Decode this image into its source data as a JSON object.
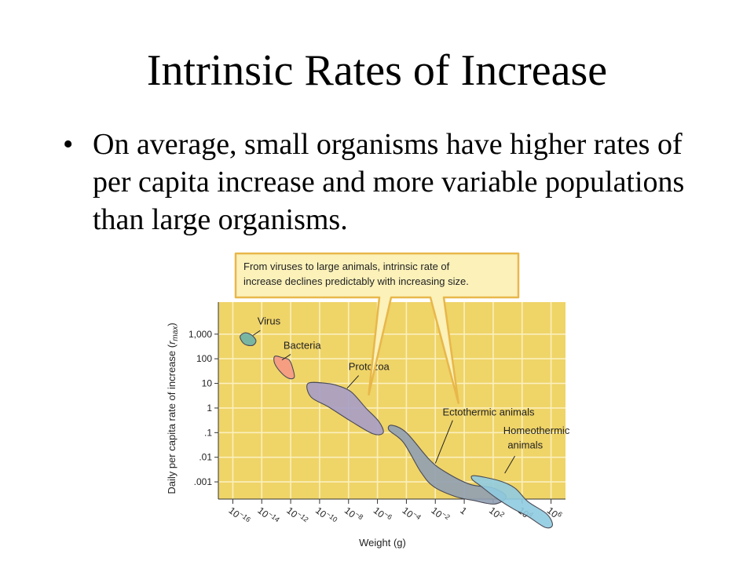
{
  "slide": {
    "title": "Intrinsic Rates of Increase",
    "bullet": "On average, small organisms have higher rates of per capita increase and more variable populations than large organisms."
  },
  "chart_data": {
    "type": "scatter",
    "subtype": "region-plot",
    "title": "",
    "xlabel": "Weight (g)",
    "ylabel_prefix": "Daily per capita rate of increase (",
    "ylabel_symbol": "r",
    "ylabel_subscript": "max",
    "ylabel_suffix": ")",
    "x_scale": "log",
    "y_scale": "log",
    "xlim": [
      1e-17,
      10000000.0
    ],
    "ylim": [
      0.0002,
      20000
    ],
    "x_ticks": [
      {
        "value": 1e-16,
        "base": "10",
        "exp": "−16"
      },
      {
        "value": 1e-14,
        "base": "10",
        "exp": "−14"
      },
      {
        "value": 1e-12,
        "base": "10",
        "exp": "−12"
      },
      {
        "value": 1e-10,
        "base": "10",
        "exp": "−10"
      },
      {
        "value": 1e-08,
        "base": "10",
        "exp": "−8"
      },
      {
        "value": 1e-06,
        "base": "10",
        "exp": "−6"
      },
      {
        "value": 0.0001,
        "base": "10",
        "exp": "−4"
      },
      {
        "value": 0.01,
        "base": "10",
        "exp": "−2"
      },
      {
        "value": 1,
        "base": "1",
        "exp": ""
      },
      {
        "value": 100.0,
        "base": "10",
        "exp": "2"
      },
      {
        "value": 10000.0,
        "base": "10",
        "exp": "4"
      },
      {
        "value": 1000000.0,
        "base": "10",
        "exp": "6"
      }
    ],
    "y_ticks": [
      {
        "value": 1000,
        "label": "1,000"
      },
      {
        "value": 100,
        "label": "100"
      },
      {
        "value": 10,
        "label": "10"
      },
      {
        "value": 1,
        "label": "1"
      },
      {
        "value": 0.1,
        "label": ".1"
      },
      {
        "value": 0.01,
        "label": ".01"
      },
      {
        "value": 0.001,
        "label": ".001"
      }
    ],
    "grid": true,
    "background_color": "#efd468",
    "grid_color": "#fbf0bd",
    "callout": {
      "lines": [
        "From viruses to large animals, intrinsic rate of",
        "increase declines predictably with increasing size."
      ],
      "fill": "#fbf1b9",
      "stroke": "#e8b74a"
    },
    "series": [
      {
        "name": "Virus",
        "fill": "#6ab3a7",
        "points": [
          [
            -15.5,
            2.9
          ],
          [
            -15.2,
            3.05
          ],
          [
            -14.8,
            3.0
          ],
          [
            -14.5,
            2.85
          ],
          [
            -14.4,
            2.7
          ],
          [
            -14.6,
            2.55
          ],
          [
            -15.0,
            2.55
          ],
          [
            -15.3,
            2.65
          ]
        ]
      },
      {
        "name": "Bacteria",
        "fill": "#f59884",
        "points": [
          [
            -13.1,
            2.1
          ],
          [
            -12.6,
            2.05
          ],
          [
            -12.1,
            1.95
          ],
          [
            -11.85,
            1.6
          ],
          [
            -11.75,
            1.25
          ],
          [
            -12.1,
            1.2
          ],
          [
            -12.6,
            1.4
          ],
          [
            -13.1,
            1.8
          ]
        ]
      },
      {
        "name": "Protozoa",
        "fill": "#a69cc6",
        "points": [
          [
            -10.8,
            1.0
          ],
          [
            -9.5,
            1.0
          ],
          [
            -8.7,
            0.9
          ],
          [
            -7.8,
            0.65
          ],
          [
            -6.8,
            0.0
          ],
          [
            -5.9,
            -0.55
          ],
          [
            -5.6,
            -1.0
          ],
          [
            -6.3,
            -1.05
          ],
          [
            -7.8,
            -0.55
          ],
          [
            -9.4,
            0.05
          ],
          [
            -10.6,
            0.45
          ]
        ]
      },
      {
        "name": "Ectothermic animals",
        "fill": "#8f9fb2",
        "points": [
          [
            -5.0,
            -0.7
          ],
          [
            -4.0,
            -1.0
          ],
          [
            -2.4,
            -2.1
          ],
          [
            -1.3,
            -2.6
          ],
          [
            0.4,
            -3.1
          ],
          [
            2.0,
            -3.25
          ],
          [
            2.9,
            -3.6
          ],
          [
            2.1,
            -3.9
          ],
          [
            0.6,
            -3.75
          ],
          [
            -0.6,
            -3.6
          ],
          [
            -2.1,
            -3.2
          ],
          [
            -3.0,
            -2.6
          ],
          [
            -4.2,
            -1.4
          ],
          [
            -5.2,
            -0.9
          ]
        ]
      },
      {
        "name": "Homeothermic animals",
        "fill": "#8fcbe0",
        "points": [
          [
            0.7,
            -2.75
          ],
          [
            2.4,
            -2.95
          ],
          [
            3.5,
            -3.25
          ],
          [
            4.4,
            -3.8
          ],
          [
            5.7,
            -4.3
          ],
          [
            6.1,
            -4.75
          ],
          [
            5.6,
            -4.85
          ],
          [
            4.4,
            -4.4
          ],
          [
            3.4,
            -4.1
          ],
          [
            2.2,
            -3.65
          ],
          [
            1.1,
            -3.15
          ],
          [
            0.55,
            -2.9
          ]
        ]
      }
    ],
    "labels": [
      {
        "text": "Virus",
        "data_x": -14.3,
        "data_y": 3.4,
        "line": [
          [
            -14.1,
            3.15
          ],
          [
            -14.6,
            2.95
          ]
        ]
      },
      {
        "text": "Bacteria",
        "data_x": -12.5,
        "data_y": 2.4,
        "line": [
          [
            -12.0,
            2.18
          ],
          [
            -12.6,
            1.95
          ]
        ]
      },
      {
        "text": "Protozoa",
        "data_x": -8.0,
        "data_y": 1.55,
        "line": [
          [
            -7.3,
            1.32
          ],
          [
            -8.1,
            0.8
          ]
        ]
      },
      {
        "text": "Ectothermic animals",
        "data_x": -1.5,
        "data_y": -0.3,
        "line": [
          [
            -0.8,
            -0.5
          ],
          [
            -2.0,
            -2.25
          ]
        ]
      },
      {
        "text": "Homeothermic",
        "data_x": 2.7,
        "data_y": -1.05,
        "line": []
      },
      {
        "text": "animals",
        "data_x": 3.0,
        "data_y": -1.65,
        "line": [
          [
            3.5,
            -1.95
          ],
          [
            2.8,
            -2.65
          ]
        ]
      }
    ]
  }
}
